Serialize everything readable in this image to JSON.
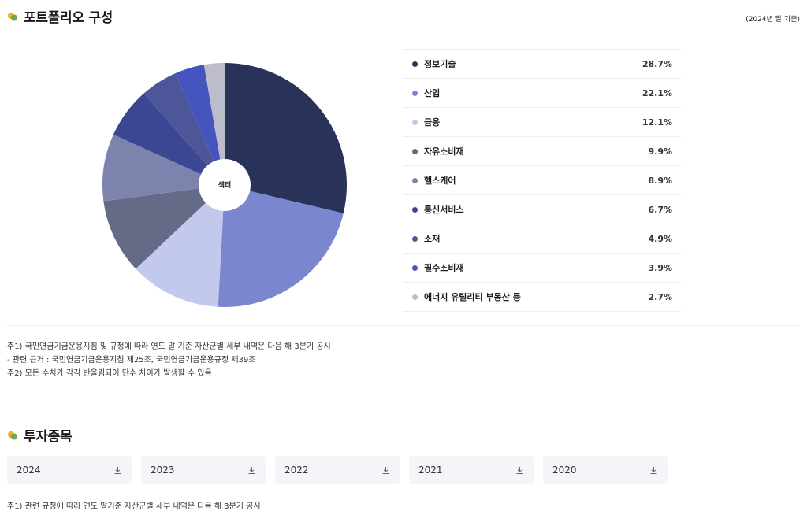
{
  "portfolio": {
    "title": "포트폴리오 구성",
    "basis": "(2024년 말 기준)",
    "center_label": "섹터"
  },
  "chart_data": {
    "type": "pie",
    "center_label": "섹터",
    "slices": [
      {
        "label": "정보기술",
        "value": 28.7,
        "display": "28.7%",
        "color": "#293258"
      },
      {
        "label": "산업",
        "value": 22.1,
        "display": "22.1%",
        "color": "#7a86cd"
      },
      {
        "label": "금융",
        "value": 12.1,
        "display": "12.1%",
        "color": "#c3c9ed"
      },
      {
        "label": "자유소비재",
        "value": 9.9,
        "display": "9.9%",
        "color": "#656a86"
      },
      {
        "label": "헬스케어",
        "value": 8.9,
        "display": "8.9%",
        "color": "#7c84ad"
      },
      {
        "label": "통신서비스",
        "value": 6.7,
        "display": "6.7%",
        "color": "#3c4793"
      },
      {
        "label": "소재",
        "value": 4.9,
        "display": "4.9%",
        "color": "#4d5699"
      },
      {
        "label": "필수소비재",
        "value": 3.9,
        "display": "3.9%",
        "color": "#4654be"
      },
      {
        "label": "에너지 유틸리티 부동산 등",
        "value": 2.7,
        "display": "2.7%",
        "color": "#bcbccb"
      }
    ]
  },
  "notes": [
    "주1) 국민연금기금운용지침 및 규정에 따라 연도 말 기준 자산군별 세부 내역은 다음 해 3분기 공시",
    "- 관련 근거 : 국민연금기금운용지침 제25조, 국민연금기금운용규정 제39조",
    "주2) 모든 수치가 각각 반올림되어 단수 차이가 발생할 수 있음"
  ],
  "holdings": {
    "title": "투자종목",
    "years": [
      "2024",
      "2023",
      "2022",
      "2021",
      "2020"
    ],
    "note": "주1) 관련 규정에 따라 연도 말기준 자산군별 세부 내역은 다음 해 3분기 공시"
  },
  "icons": {
    "section": "leaf-icon",
    "download": "download-icon"
  }
}
